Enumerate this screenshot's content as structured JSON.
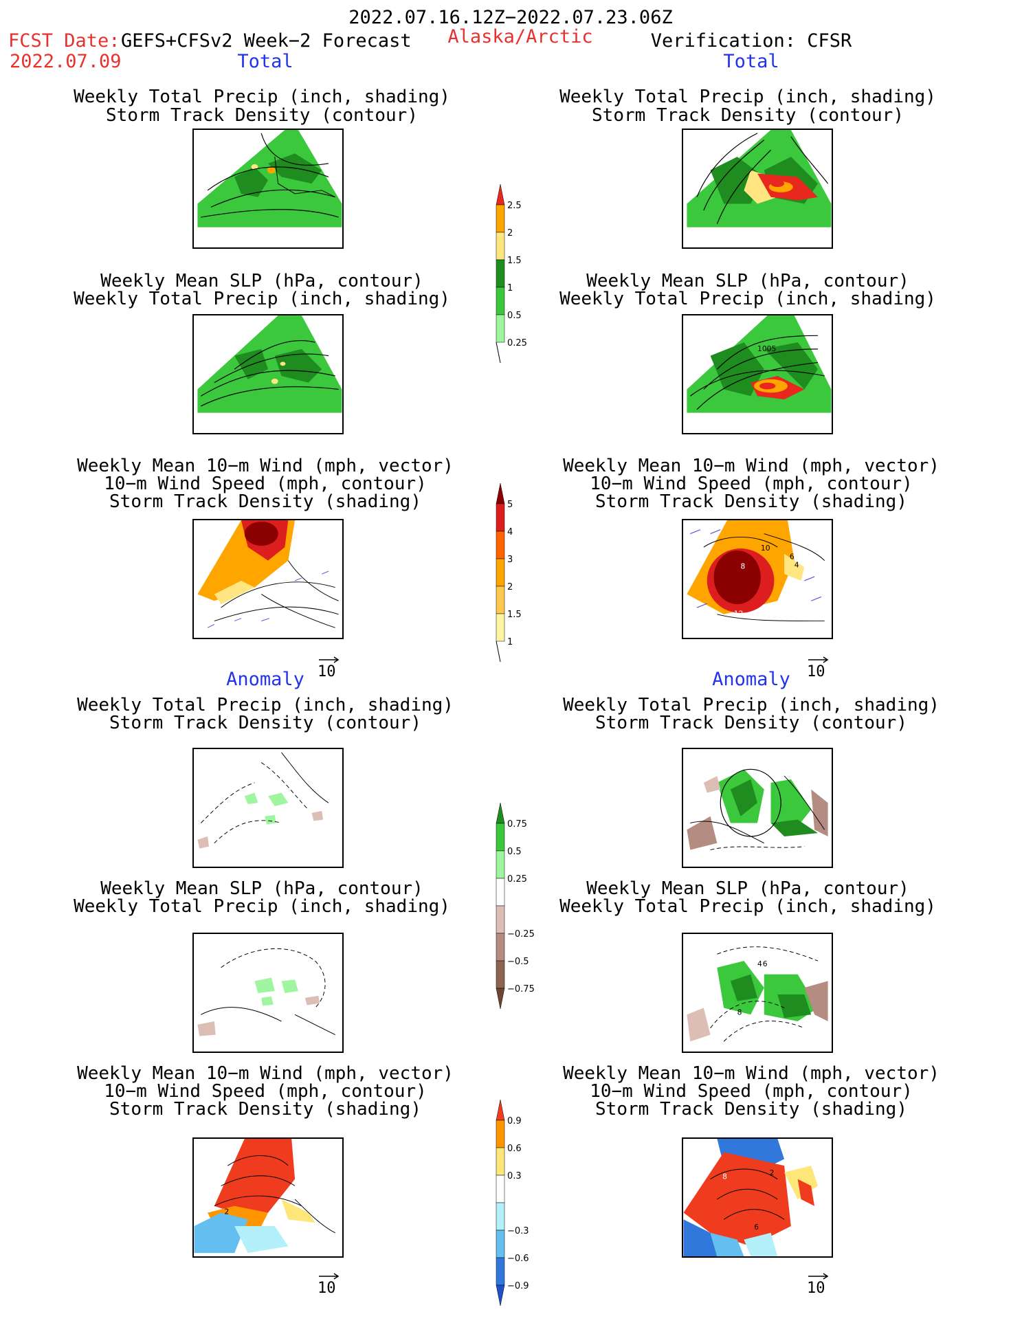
{
  "header": {
    "period": "2022.07.16.12Z−2022.07.23.06Z",
    "fcst_label": "FCST Date:",
    "fcst_model": "GEFS+CFSv2 Week−2 Forecast",
    "fcst_date": "2022.07.09",
    "region": "Alaska/Arctic",
    "verification": "Verification: CFSR"
  },
  "sections": {
    "total": "Total",
    "anomaly": "Anomaly"
  },
  "titles": {
    "precip_storm": [
      "Weekly Total Precip (inch, shading)",
      "Storm Track Density (contour)"
    ],
    "slp_precip": [
      "Weekly Mean SLP (hPa, contour)",
      "Weekly Total Precip (inch, shading)"
    ],
    "wind_storm": [
      "Weekly Mean 10−m Wind (mph, vector)",
      "10−m Wind Speed (mph, contour)",
      "Storm Track Density (shading)"
    ]
  },
  "vector_ref": "10",
  "colorbars": {
    "precip_total": {
      "ticks": [
        "2.5",
        "2",
        "1.5",
        "1",
        "0.5",
        "0.25"
      ],
      "colors": [
        "#e8281e",
        "#ffa500",
        "#ffe680",
        "#1e8c1e",
        "#3cc83c",
        "#a0f5a0"
      ]
    },
    "storm_total": {
      "ticks": [
        "5",
        "4",
        "3",
        "2",
        "1.5",
        "1"
      ],
      "colors": [
        "#8b0000",
        "#dc1e1e",
        "#ff6400",
        "#ffa500",
        "#ffc850",
        "#fff5a0"
      ]
    },
    "precip_anom": {
      "ticks": [
        "0.75",
        "0.5",
        "0.25",
        "−0.25",
        "−0.5",
        "−0.75"
      ],
      "colors": [
        "#1e8c1e",
        "#3cc83c",
        "#a0f5a0",
        "#ffffff",
        "#dcbeb4",
        "#b48c82",
        "#8c6450",
        "#6e4634"
      ]
    },
    "storm_anom": {
      "ticks": [
        "0.9",
        "0.6",
        "0.3",
        "−0.3",
        "−0.6",
        "−0.9"
      ],
      "colors": [
        "#f03c1e",
        "#ff9600",
        "#ffe678",
        "#ffffff",
        "#b4f0fa",
        "#64bef0",
        "#3278dc",
        "#1e50c8"
      ]
    }
  },
  "panel_labels": {
    "right_slp_total": "1005",
    "right_wind_total": [
      "10",
      "6",
      "4",
      "8",
      "12"
    ],
    "right_slp_anom": [
      "4",
      "6",
      "8"
    ],
    "right_wind_anom": [
      "8",
      "2",
      "6"
    ],
    "left_wind_anom": "2"
  }
}
